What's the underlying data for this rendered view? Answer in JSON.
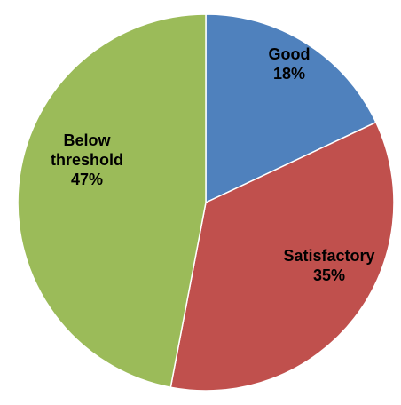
{
  "chart_data": {
    "type": "pie",
    "title": "",
    "slices": [
      {
        "label_lines": [
          "Good"
        ],
        "value": 18,
        "value_label": "18%",
        "color": "#4F81BD"
      },
      {
        "label_lines": [
          "Satisfactory"
        ],
        "value": 35,
        "value_label": "35%",
        "color": "#C0504D"
      },
      {
        "label_lines": [
          "Below",
          "threshold"
        ],
        "value": 47,
        "value_label": "47%",
        "color": "#9BBB59"
      }
    ],
    "start": "12 o'clock",
    "direction": "clockwise",
    "legend": "none",
    "data_labels": "inside"
  }
}
